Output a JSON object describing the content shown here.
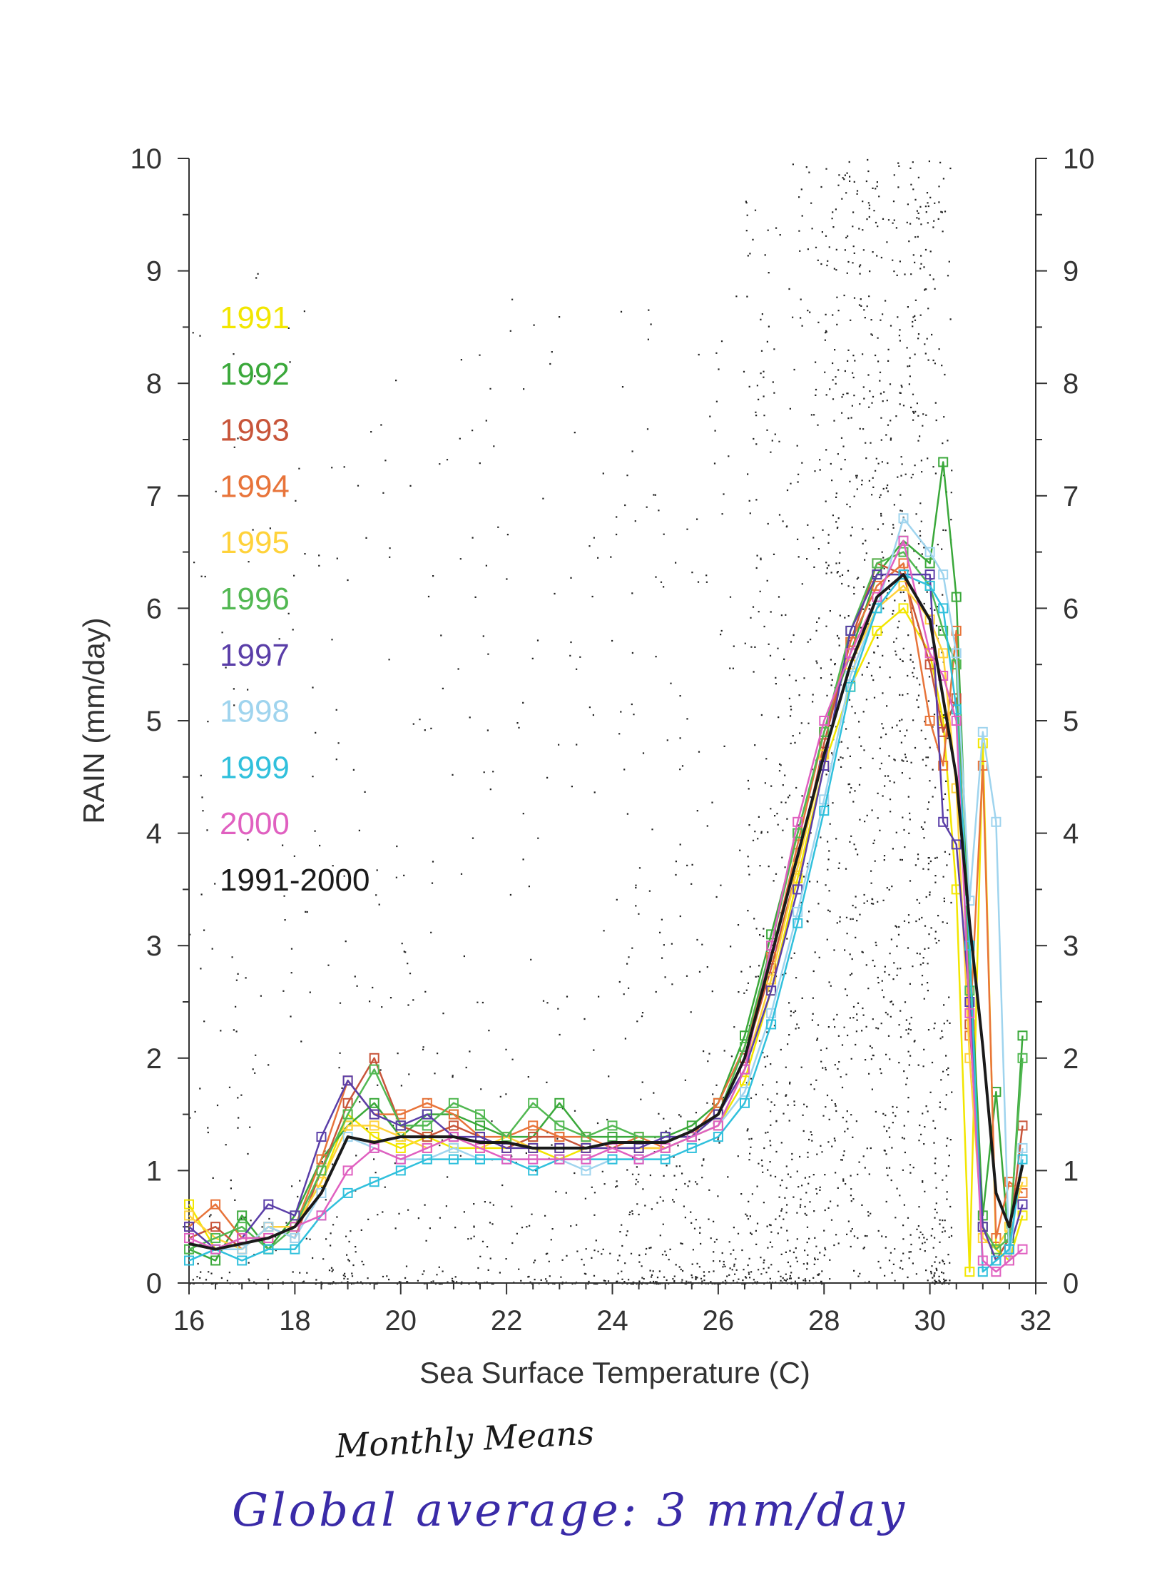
{
  "chart_data": {
    "type": "line",
    "title": "",
    "xlabel": "Sea Surface Temperature (C)",
    "ylabel": "RAIN (mm/day)",
    "xlim": [
      16,
      32
    ],
    "ylim": [
      0,
      10
    ],
    "xticks": [
      "16",
      "18",
      "20",
      "22",
      "24",
      "26",
      "28",
      "30",
      "32"
    ],
    "yticks": [
      "0",
      "1",
      "2",
      "3",
      "4",
      "5",
      "6",
      "7",
      "8",
      "9",
      "10"
    ],
    "grid": false,
    "legend_position": "top-left",
    "background": "scatter of individual monthly grid-point values",
    "mean_curve": {
      "name": "1991-2000",
      "color": "#1a1a1a",
      "x": [
        16,
        16.5,
        17,
        17.5,
        18,
        18.5,
        19,
        19.5,
        20,
        20.5,
        21,
        21.5,
        22,
        22.5,
        23,
        23.5,
        24,
        24.5,
        25,
        25.5,
        26,
        26.5,
        27,
        27.5,
        28,
        28.5,
        29,
        29.5,
        30,
        30.25,
        30.5,
        30.75,
        31,
        31.25,
        31.5,
        31.75
      ],
      "y": [
        0.35,
        0.3,
        0.35,
        0.4,
        0.5,
        0.8,
        1.3,
        1.25,
        1.3,
        1.3,
        1.3,
        1.25,
        1.25,
        1.2,
        1.2,
        1.2,
        1.25,
        1.25,
        1.25,
        1.35,
        1.5,
        2.0,
        2.9,
        3.8,
        4.7,
        5.5,
        6.1,
        6.3,
        5.9,
        5.2,
        4.5,
        3.2,
        2.1,
        0.8,
        0.5,
        1.05
      ]
    },
    "series": [
      {
        "name": "1991",
        "color": "#f2e600",
        "y": [
          0.7,
          0.3,
          0.4,
          0.4,
          0.5,
          0.9,
          1.5,
          1.3,
          1.2,
          1.3,
          1.2,
          1.2,
          1.2,
          1.2,
          1.1,
          1.2,
          1.2,
          1.2,
          1.2,
          1.3,
          1.4,
          1.8,
          2.6,
          3.6,
          4.6,
          5.3,
          5.8,
          6.0,
          5.6,
          5.0,
          3.5,
          0.1,
          4.8,
          0.3,
          0.2,
          0.6
        ]
      },
      {
        "name": "1992",
        "color": "#3aa83a",
        "y": [
          0.3,
          0.2,
          0.6,
          0.3,
          0.6,
          1.1,
          1.4,
          1.6,
          1.3,
          1.5,
          1.5,
          1.4,
          1.3,
          1.3,
          1.6,
          1.3,
          1.3,
          1.3,
          1.3,
          1.4,
          1.6,
          2.2,
          3.1,
          4.0,
          4.9,
          5.6,
          6.3,
          6.6,
          6.4,
          7.3,
          6.1,
          3.0,
          0.6,
          1.7,
          0.3,
          2.2
        ]
      },
      {
        "name": "1993",
        "color": "#c8553a",
        "y": [
          0.4,
          0.5,
          0.3,
          0.5,
          0.4,
          1.0,
          1.6,
          2.0,
          1.4,
          1.3,
          1.4,
          1.3,
          1.2,
          1.3,
          1.3,
          1.2,
          1.2,
          1.2,
          1.2,
          1.3,
          1.5,
          2.0,
          2.8,
          3.7,
          4.8,
          5.7,
          6.4,
          6.3,
          5.5,
          4.9,
          5.2,
          2.3,
          0.5,
          0.2,
          0.4,
          1.4
        ]
      },
      {
        "name": "1994",
        "color": "#e8743a",
        "y": [
          0.5,
          0.7,
          0.4,
          0.4,
          0.5,
          1.1,
          1.8,
          1.5,
          1.5,
          1.6,
          1.5,
          1.3,
          1.3,
          1.4,
          1.3,
          1.3,
          1.2,
          1.3,
          1.2,
          1.3,
          1.6,
          2.1,
          2.9,
          3.9,
          4.9,
          5.7,
          6.2,
          6.4,
          5.0,
          4.6,
          5.8,
          2.2,
          4.6,
          0.4,
          0.9,
          0.8
        ]
      },
      {
        "name": "1995",
        "color": "#ffd23a",
        "y": [
          0.6,
          0.4,
          0.3,
          0.5,
          0.5,
          0.9,
          1.4,
          1.4,
          1.3,
          1.2,
          1.3,
          1.2,
          1.3,
          1.2,
          1.2,
          1.2,
          1.2,
          1.2,
          1.2,
          1.3,
          1.4,
          1.9,
          2.7,
          3.7,
          4.7,
          5.5,
          6.0,
          6.2,
          5.9,
          5.6,
          4.4,
          2.0,
          0.4,
          0.3,
          0.5,
          0.9
        ]
      },
      {
        "name": "1996",
        "color": "#52b852",
        "y": [
          0.3,
          0.4,
          0.5,
          0.3,
          0.5,
          1.0,
          1.5,
          1.9,
          1.4,
          1.4,
          1.6,
          1.5,
          1.3,
          1.6,
          1.4,
          1.3,
          1.4,
          1.3,
          1.3,
          1.3,
          1.5,
          2.1,
          3.0,
          4.0,
          4.9,
          5.8,
          6.4,
          6.5,
          6.2,
          5.8,
          5.5,
          2.6,
          0.5,
          0.3,
          0.4,
          2.0
        ]
      },
      {
        "name": "1997",
        "color": "#5a3ea8",
        "y": [
          0.5,
          0.3,
          0.4,
          0.7,
          0.6,
          1.3,
          1.8,
          1.5,
          1.4,
          1.5,
          1.3,
          1.3,
          1.2,
          1.2,
          1.2,
          1.2,
          1.2,
          1.2,
          1.3,
          1.3,
          1.5,
          1.9,
          2.6,
          3.5,
          4.6,
          5.8,
          6.3,
          6.3,
          6.3,
          4.1,
          3.9,
          2.5,
          0.5,
          0.2,
          0.3,
          0.7
        ]
      },
      {
        "name": "1998",
        "color": "#9fd4ee",
        "y": [
          0.2,
          0.3,
          0.3,
          0.5,
          0.4,
          0.8,
          1.3,
          1.2,
          1.1,
          1.1,
          1.2,
          1.1,
          1.1,
          1.1,
          1.1,
          1.0,
          1.1,
          1.1,
          1.2,
          1.3,
          1.4,
          1.7,
          2.4,
          3.3,
          4.3,
          5.4,
          6.0,
          6.8,
          6.5,
          6.3,
          5.6,
          3.4,
          4.9,
          4.1,
          0.2,
          1.2
        ]
      },
      {
        "name": "1999",
        "color": "#30c0dc",
        "y": [
          0.2,
          0.3,
          0.2,
          0.3,
          0.3,
          0.6,
          0.8,
          0.9,
          1.0,
          1.1,
          1.1,
          1.1,
          1.1,
          1.0,
          1.1,
          1.1,
          1.1,
          1.1,
          1.1,
          1.2,
          1.3,
          1.6,
          2.3,
          3.2,
          4.2,
          5.3,
          6.0,
          6.3,
          6.2,
          6.0,
          5.1,
          3.0,
          0.1,
          0.2,
          0.3,
          1.1
        ]
      },
      {
        "name": "2000",
        "color": "#e060c0",
        "y": [
          0.4,
          0.3,
          0.4,
          0.4,
          0.5,
          0.6,
          1.0,
          1.2,
          1.1,
          1.2,
          1.3,
          1.2,
          1.1,
          1.1,
          1.1,
          1.1,
          1.2,
          1.1,
          1.2,
          1.3,
          1.4,
          1.9,
          3.0,
          4.1,
          5.0,
          5.6,
          6.1,
          6.6,
          5.6,
          5.4,
          5.0,
          2.4,
          0.2,
          0.1,
          0.2,
          0.3
        ]
      }
    ],
    "series_x": [
      16,
      16.5,
      17,
      17.5,
      18,
      18.5,
      19,
      19.5,
      20,
      20.5,
      21,
      21.5,
      22,
      22.5,
      23,
      23.5,
      24,
      24.5,
      25,
      25.5,
      26,
      26.5,
      27,
      27.5,
      28,
      28.5,
      29,
      29.5,
      30,
      30.25,
      30.5,
      30.75,
      31,
      31.25,
      31.5,
      31.75
    ]
  },
  "annotations": {
    "note_1": "Monthly Means",
    "note_2": "Global average: 3 mm/day"
  }
}
